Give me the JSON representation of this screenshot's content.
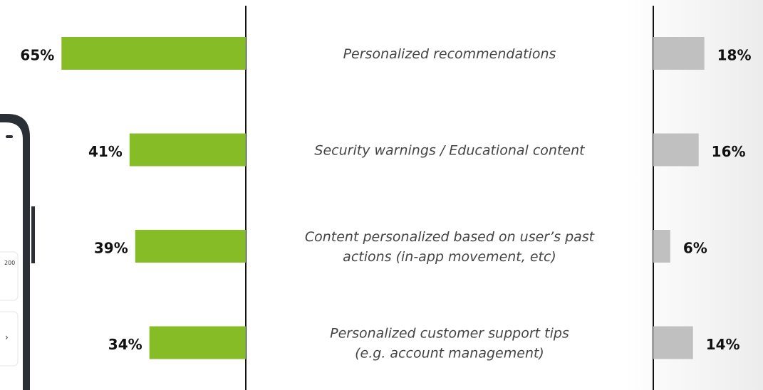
{
  "chart_data": {
    "type": "butterfly",
    "categories": [
      [
        "Personalized recommendations"
      ],
      [
        "Security warnings / Educational content"
      ],
      [
        "Content personalized based on user’s past",
        "actions (in-app movement, etc)"
      ],
      [
        "Personalized customer support tips",
        "(e.g. account management)"
      ]
    ],
    "series": [
      {
        "color": "#86bc25",
        "values": [
          65,
          41,
          39,
          34
        ],
        "value_labels": [
          "65%",
          "41%",
          "39%",
          "34%"
        ]
      },
      {
        "color": "#c0c0c0",
        "values": [
          18,
          16,
          6,
          14
        ],
        "value_labels": [
          "18%",
          "16%",
          "6%",
          "14%"
        ]
      }
    ]
  },
  "phone": {
    "texts": [
      "200",
      "›"
    ]
  }
}
